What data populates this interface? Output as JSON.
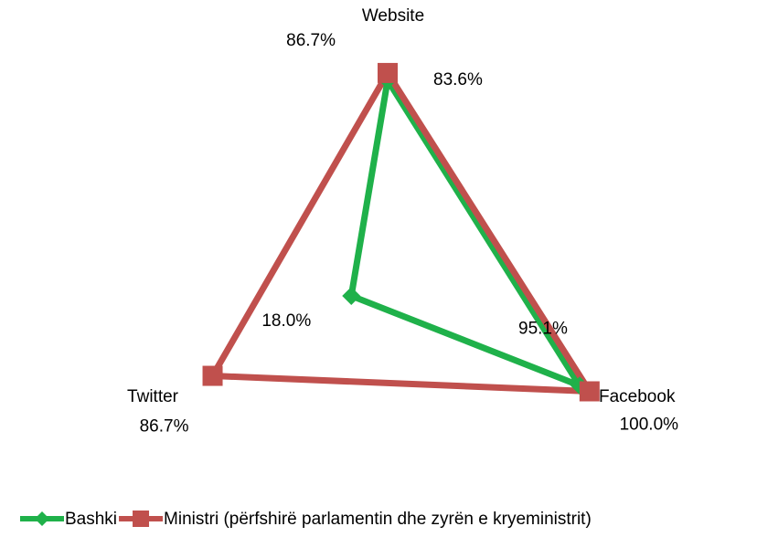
{
  "chart_data": {
    "type": "radar",
    "categories": [
      "Website",
      "Facebook",
      "Twitter"
    ],
    "rlim": [
      0,
      100
    ],
    "series": [
      {
        "name": "Bashki",
        "color": "#1fb14a",
        "marker": "diamond",
        "values": [
          83.6,
          95.1,
          18.0
        ],
        "value_labels": [
          "83.6%",
          "95.1%",
          "18.0%"
        ]
      },
      {
        "name": "Ministri (përfshirë parlamentin dhe zyrën e kryeministrit)",
        "color": "#c0504d",
        "marker": "square",
        "values": [
          86.7,
          100.0,
          86.7
        ],
        "value_labels": [
          "86.7%",
          "100.0%",
          "86.7%"
        ]
      }
    ]
  }
}
